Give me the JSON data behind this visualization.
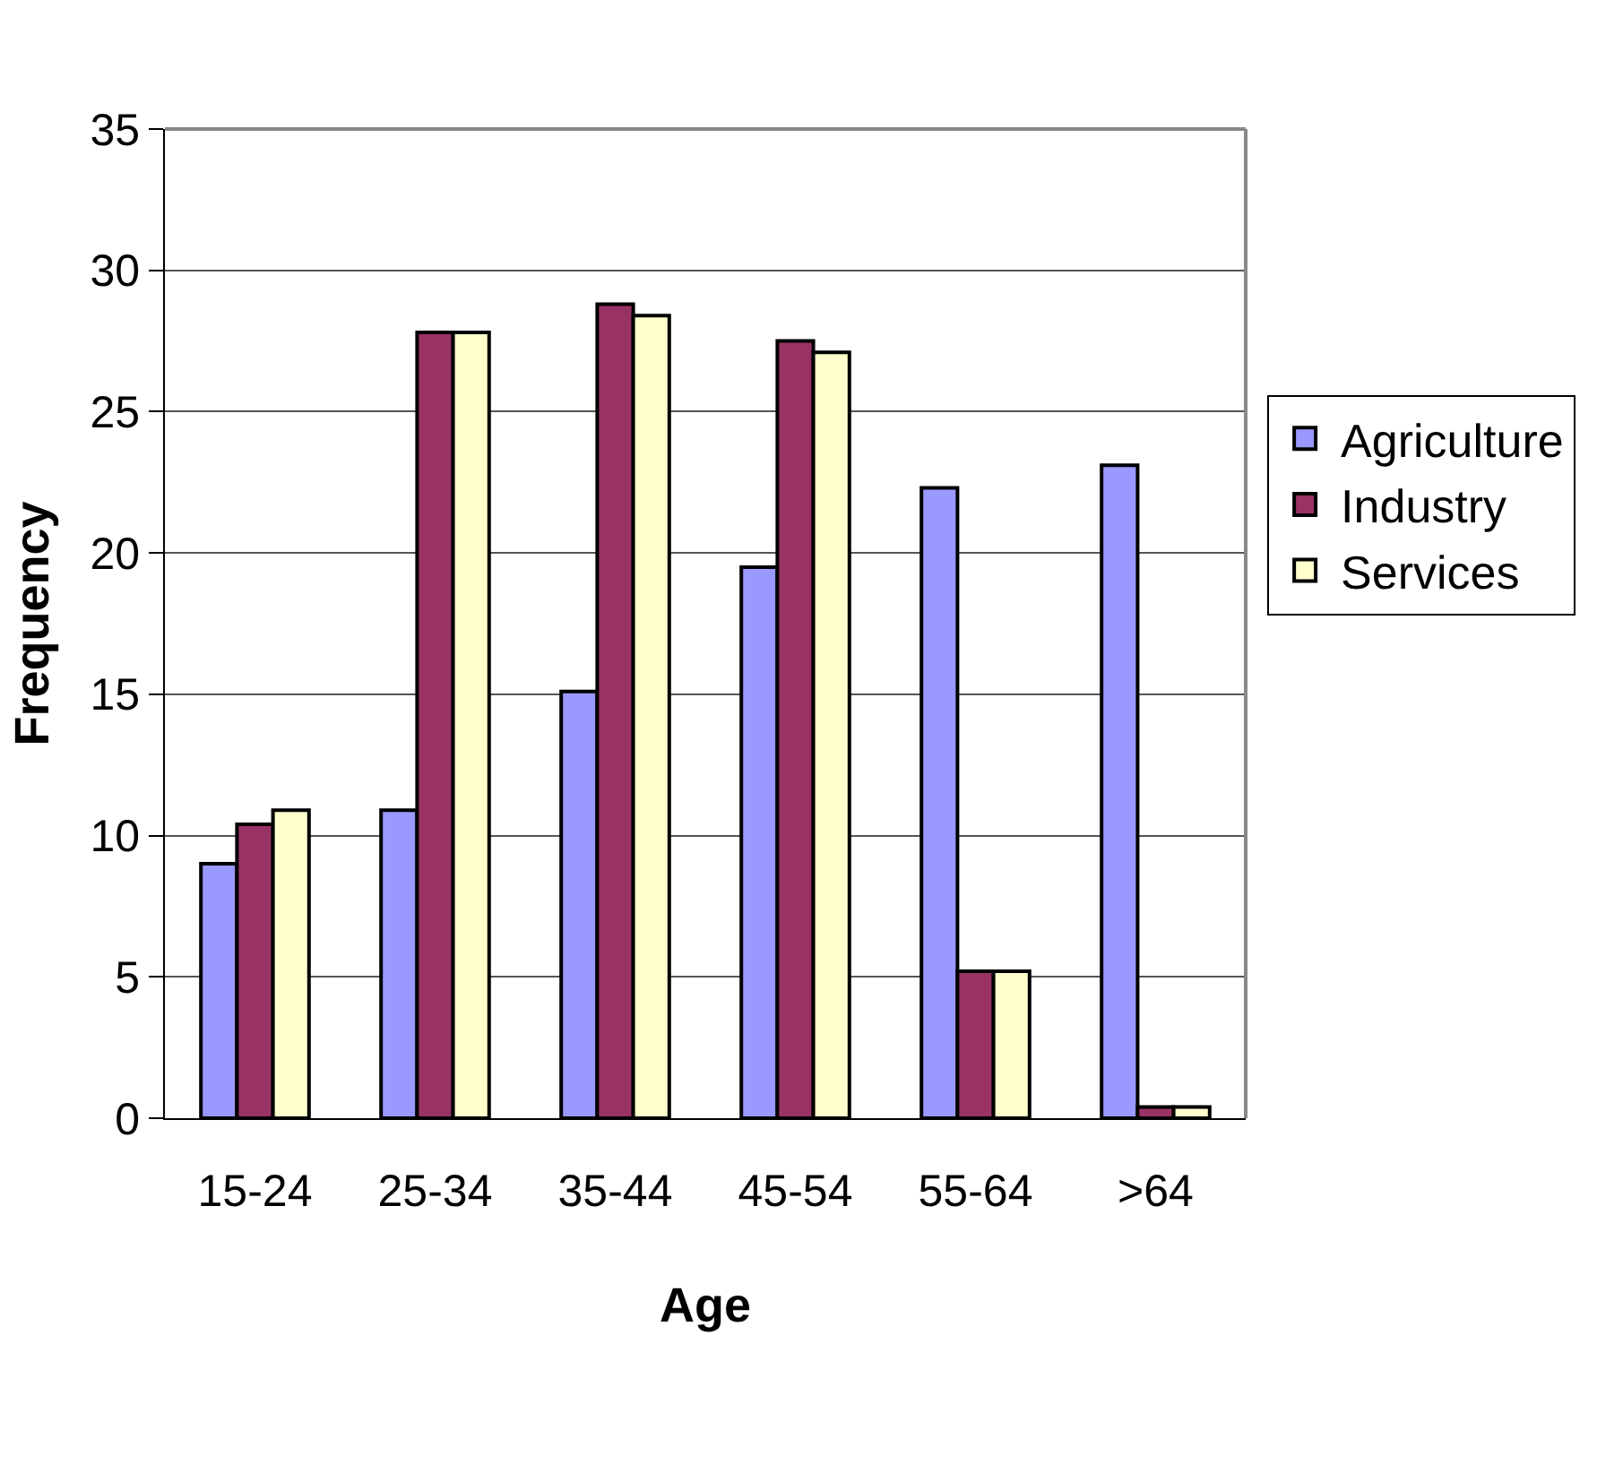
{
  "chart_data": {
    "type": "bar",
    "xlabel": "Age",
    "ylabel": "Frequency",
    "categories": [
      "15-24",
      "25-34",
      "35-44",
      "45-54",
      "55-64",
      ">64"
    ],
    "series": [
      {
        "name": "Agriculture",
        "color": "#9999ff",
        "values": [
          9.0,
          10.9,
          15.1,
          19.5,
          22.3,
          23.1
        ]
      },
      {
        "name": "Industry",
        "color": "#993366",
        "values": [
          10.4,
          27.8,
          28.8,
          27.5,
          5.2,
          0.4
        ]
      },
      {
        "name": "Services",
        "color": "#ffffcc",
        "values": [
          10.9,
          27.8,
          28.4,
          27.1,
          5.2,
          0.4
        ]
      }
    ],
    "ylim": [
      0,
      35
    ],
    "yticks": [
      0,
      5,
      10,
      15,
      20,
      25,
      30,
      35
    ],
    "grid": "y",
    "legend": "right"
  }
}
